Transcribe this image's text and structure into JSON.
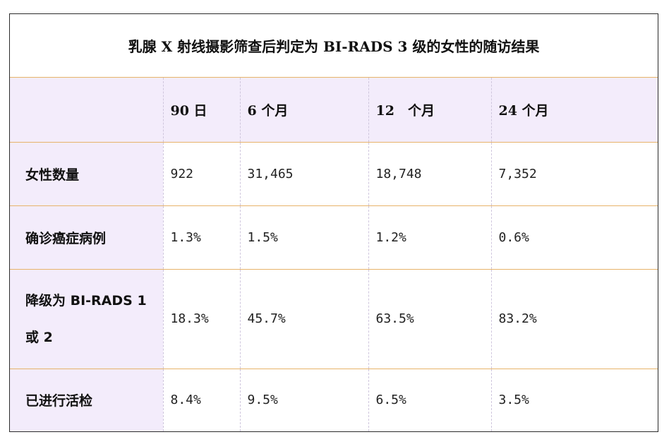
{
  "title": "乳腺 X 射线摄影筛查后判定为 BI-RADS 3 级的女性的随访结果",
  "columns": [
    "",
    "90 日",
    "6 个月",
    "12　个月",
    "24 个月"
  ],
  "rows": [
    {
      "label": "女性数量",
      "values": [
        "922",
        "31,465",
        "18,748",
        "7,352"
      ]
    },
    {
      "label": "确诊癌症病例",
      "values": [
        "1.3%",
        "1.5%",
        "1.2%",
        "0.6%"
      ]
    },
    {
      "label": "降级为 BI-RADS 1 或 2",
      "values": [
        "18.3%",
        "45.7%",
        "63.5%",
        "83.2%"
      ]
    },
    {
      "label": "已进行活检",
      "values": [
        "8.4%",
        "9.5%",
        "6.5%",
        "3.5%"
      ]
    }
  ]
}
